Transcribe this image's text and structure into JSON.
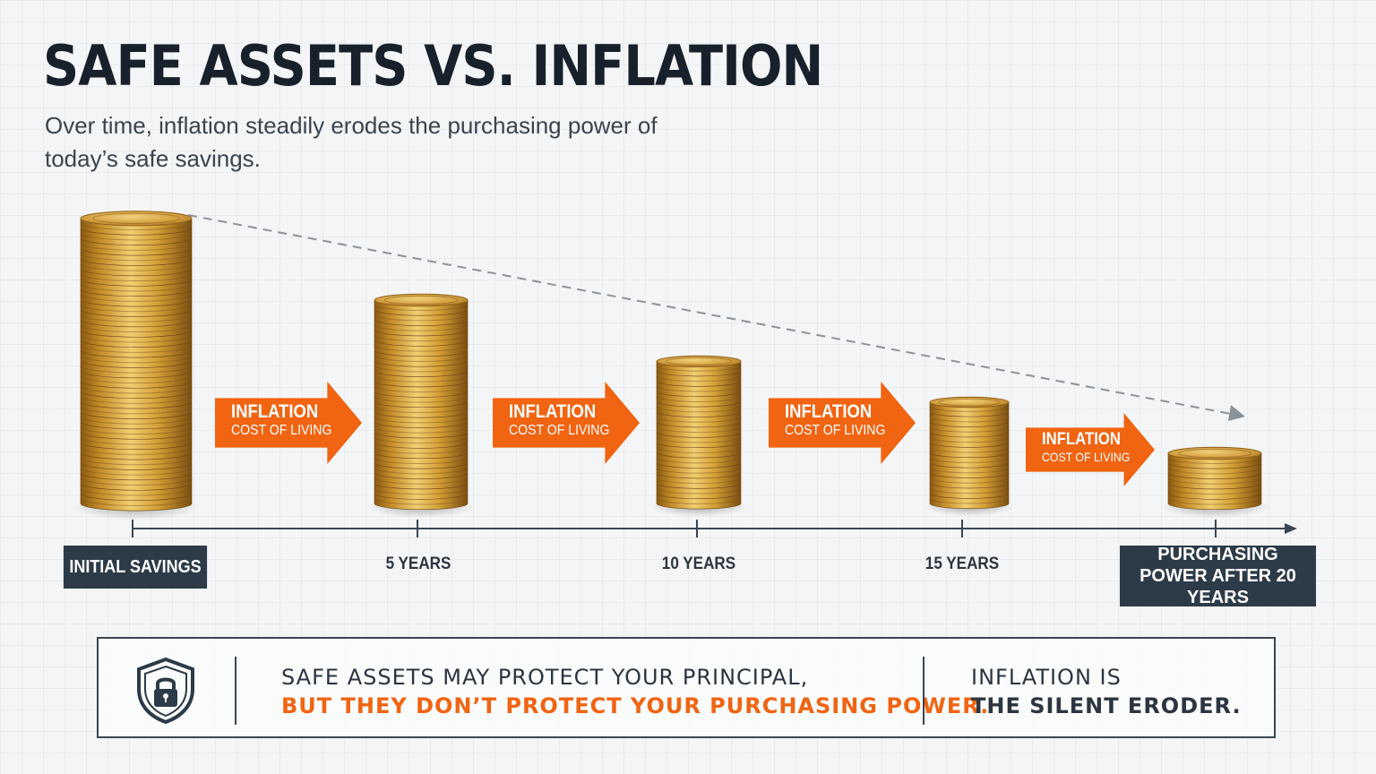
{
  "title": "SAFE ASSETS VS. INFLATION",
  "subtitle": "Over time, inflation steadily erodes the purchasing power of today’s safe savings.",
  "stages": [
    {
      "label": "INITIAL SAVINGS",
      "coins": 28
    },
    {
      "label": "5 YEARS",
      "coins": 20
    },
    {
      "label": "10 YEARS",
      "coins": 14
    },
    {
      "label": "15 YEARS",
      "coins": 10
    },
    {
      "label": "PURCHASING POWER AFTER 20 YEARS",
      "coins": 5
    }
  ],
  "arrows": [
    {
      "title": "INFLATION",
      "sub": "COST OF LIVING"
    },
    {
      "title": "INFLATION",
      "sub": "COST OF LIVING"
    },
    {
      "title": "INFLATION",
      "sub": "COST OF LIVING"
    },
    {
      "title": "INFLATION",
      "sub": "COST OF LIVING"
    }
  ],
  "colors": {
    "accent": "#f06412",
    "dark": "#2d3b48",
    "gold": "#c9952e"
  },
  "callout": {
    "icon": "shield-lock-icon",
    "line1": "SAFE ASSETS MAY PROTECT YOUR PRINCIPAL,",
    "line2": "BUT THEY DON’T PROTECT YOUR PURCHASING POWER.",
    "line3": "INFLATION IS",
    "line4": "THE SILENT ERODER."
  }
}
